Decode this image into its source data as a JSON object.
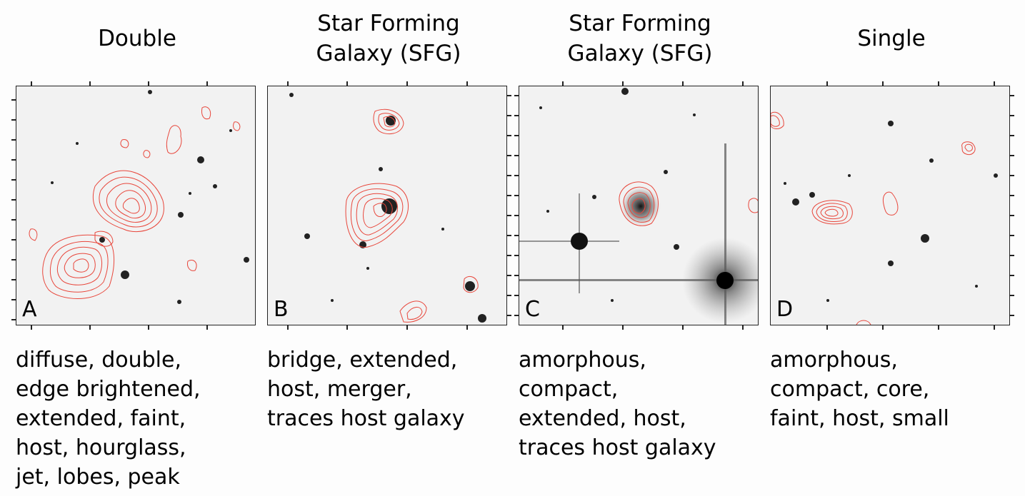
{
  "panels": [
    {
      "title": "Double",
      "letter": "A",
      "tags": "diffuse, double,\nedge brightened,\nextended, faint,\nhost, hourglass,\njet, lobes, peak"
    },
    {
      "title": "Star Forming\nGalaxy (SFG)",
      "letter": "B",
      "tags": "bridge, extended,\nhost, merger,\ntraces host galaxy"
    },
    {
      "title": "Star Forming\nGalaxy (SFG)",
      "letter": "C",
      "tags": "amorphous,\ncompact,\nextended, host,\ntraces host galaxy"
    },
    {
      "title": "Single",
      "letter": "D",
      "tags": "amorphous,\ncompact, core,\nfaint, host, small"
    }
  ],
  "colors": {
    "contour": "#e8473c",
    "background": "#f2f2f2",
    "source": "#111111"
  }
}
